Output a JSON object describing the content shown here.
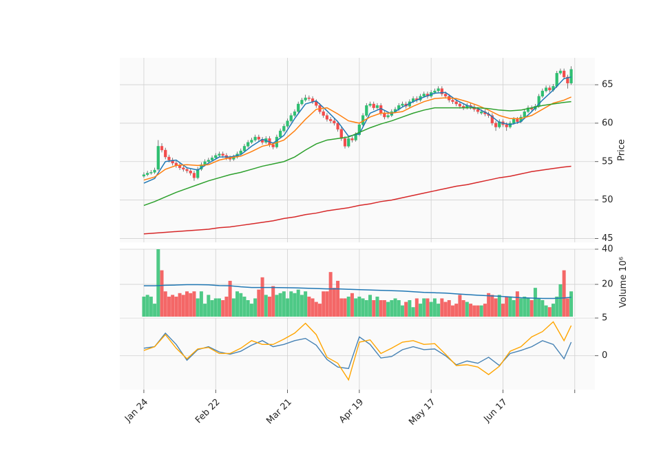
{
  "chart_data": {
    "type": "candlestick",
    "ylabel": "Price",
    "up_color": "#2fbf71",
    "down_color": "#f24c4c",
    "grid": true,
    "xlim": [
      -6.7,
      125.6
    ],
    "xticks": [
      {
        "value": 0,
        "label": "Jan 24"
      },
      {
        "value": 20,
        "label": "Feb 22"
      },
      {
        "value": 40,
        "label": "Mar 21"
      },
      {
        "value": 60,
        "label": "Apr 19"
      },
      {
        "value": 80,
        "label": "May 17"
      },
      {
        "value": 100,
        "label": "Jun 17"
      },
      120
    ],
    "ylim": [
      44.5,
      68.5
    ],
    "yticks": [
      45,
      50,
      55,
      60,
      65
    ],
    "x": [
      0,
      1,
      2,
      3,
      4,
      5,
      6,
      7,
      8,
      9,
      10,
      11,
      12,
      13,
      14,
      15,
      16,
      17,
      18,
      19,
      20,
      21,
      22,
      23,
      24,
      25,
      26,
      27,
      28,
      29,
      30,
      31,
      32,
      33,
      34,
      35,
      36,
      37,
      38,
      39,
      40,
      41,
      42,
      43,
      44,
      45,
      46,
      47,
      48,
      49,
      50,
      51,
      52,
      53,
      54,
      55,
      56,
      57,
      58,
      59,
      60,
      61,
      62,
      63,
      64,
      65,
      66,
      67,
      68,
      69,
      70,
      71,
      72,
      73,
      74,
      75,
      76,
      77,
      78,
      79,
      80,
      81,
      82,
      83,
      84,
      85,
      86,
      87,
      88,
      89,
      90,
      91,
      92,
      93,
      94,
      95,
      96,
      97,
      98,
      99,
      100,
      101,
      102,
      103,
      104,
      105,
      106,
      107,
      108,
      109,
      110,
      111,
      112,
      113,
      114,
      115,
      116,
      117,
      118,
      119
    ],
    "ohlc": [
      [
        53.1,
        53.6,
        52.9,
        53.3
      ],
      [
        53.3,
        53.8,
        53.1,
        53.5
      ],
      [
        53.5,
        53.9,
        53.3,
        53.6
      ],
      [
        53.6,
        54.2,
        53.4,
        53.9
      ],
      [
        54.0,
        57.8,
        53.8,
        57.0
      ],
      [
        57.0,
        57.4,
        56.2,
        56.5
      ],
      [
        56.5,
        56.8,
        55.3,
        55.6
      ],
      [
        55.6,
        55.9,
        54.9,
        55.2
      ],
      [
        55.2,
        55.5,
        54.5,
        54.8
      ],
      [
        54.8,
        55.1,
        54.2,
        54.5
      ],
      [
        54.5,
        54.8,
        53.9,
        54.2
      ],
      [
        54.2,
        54.5,
        53.7,
        54.0
      ],
      [
        54.0,
        54.3,
        53.5,
        53.8
      ],
      [
        53.8,
        54.1,
        53.2,
        53.5
      ],
      [
        53.5,
        53.8,
        52.5,
        52.9
      ],
      [
        52.9,
        54.3,
        52.7,
        54.0
      ],
      [
        54.0,
        54.9,
        53.8,
        54.6
      ],
      [
        54.6,
        55.3,
        54.4,
        55.0
      ],
      [
        55.0,
        55.5,
        54.8,
        55.2
      ],
      [
        55.2,
        55.8,
        55.0,
        55.5
      ],
      [
        55.5,
        56.1,
        55.3,
        55.8
      ],
      [
        55.8,
        56.3,
        55.6,
        56.0
      ],
      [
        56.0,
        56.3,
        55.5,
        55.8
      ],
      [
        55.8,
        56.1,
        55.2,
        55.5
      ],
      [
        55.5,
        55.8,
        55.0,
        55.3
      ],
      [
        55.3,
        55.9,
        55.1,
        55.6
      ],
      [
        55.6,
        56.3,
        55.4,
        56.0
      ],
      [
        56.0,
        56.7,
        55.8,
        56.4
      ],
      [
        56.4,
        57.3,
        56.2,
        57.0
      ],
      [
        57.0,
        57.8,
        56.8,
        57.5
      ],
      [
        57.5,
        58.1,
        57.3,
        57.8
      ],
      [
        57.8,
        58.5,
        57.6,
        58.2
      ],
      [
        58.2,
        58.5,
        57.6,
        57.9
      ],
      [
        57.9,
        58.2,
        57.2,
        57.5
      ],
      [
        57.5,
        58.3,
        57.3,
        58.0
      ],
      [
        58.0,
        58.3,
        56.9,
        57.2
      ],
      [
        57.2,
        57.5,
        56.6,
        56.9
      ],
      [
        56.9,
        58.5,
        56.7,
        58.2
      ],
      [
        58.2,
        59.3,
        58.0,
        59.0
      ],
      [
        59.0,
        59.9,
        58.8,
        59.6
      ],
      [
        59.6,
        60.6,
        59.4,
        60.3
      ],
      [
        60.3,
        61.3,
        60.1,
        61.0
      ],
      [
        61.0,
        61.8,
        60.8,
        61.5
      ],
      [
        61.5,
        62.8,
        61.3,
        62.5
      ],
      [
        62.5,
        63.3,
        62.3,
        63.0
      ],
      [
        63.0,
        63.7,
        62.8,
        63.3
      ],
      [
        63.3,
        63.6,
        62.9,
        63.2
      ],
      [
        63.2,
        63.5,
        62.5,
        62.8
      ],
      [
        62.8,
        63.1,
        62.0,
        62.3
      ],
      [
        62.3,
        62.6,
        61.2,
        61.5
      ],
      [
        61.5,
        61.8,
        60.7,
        61.0
      ],
      [
        61.0,
        61.3,
        60.2,
        60.5
      ],
      [
        60.5,
        60.8,
        60.0,
        60.3
      ],
      [
        60.3,
        60.6,
        59.7,
        60.0
      ],
      [
        60.0,
        60.3,
        58.9,
        59.2
      ],
      [
        59.2,
        59.5,
        57.7,
        58.0
      ],
      [
        58.0,
        58.3,
        56.7,
        57.0
      ],
      [
        57.0,
        58.3,
        56.8,
        58.0
      ],
      [
        58.0,
        58.3,
        57.5,
        57.8
      ],
      [
        57.8,
        58.8,
        57.6,
        58.5
      ],
      [
        58.5,
        60.1,
        58.3,
        59.8
      ],
      [
        59.8,
        61.3,
        59.6,
        61.0
      ],
      [
        61.0,
        62.6,
        60.8,
        62.3
      ],
      [
        62.3,
        62.8,
        62.1,
        62.5
      ],
      [
        62.5,
        62.8,
        61.7,
        62.0
      ],
      [
        62.0,
        62.6,
        61.8,
        62.3
      ],
      [
        62.3,
        62.6,
        61.0,
        61.3
      ],
      [
        61.3,
        61.6,
        60.5,
        60.8
      ],
      [
        60.8,
        61.3,
        60.6,
        61.0
      ],
      [
        61.0,
        61.8,
        60.8,
        61.5
      ],
      [
        61.5,
        62.1,
        61.3,
        61.8
      ],
      [
        61.8,
        62.6,
        61.6,
        62.3
      ],
      [
        62.3,
        62.8,
        62.1,
        62.5
      ],
      [
        62.5,
        62.8,
        61.9,
        62.2
      ],
      [
        62.2,
        63.1,
        62.0,
        62.8
      ],
      [
        62.8,
        63.5,
        62.6,
        63.2
      ],
      [
        63.2,
        63.5,
        62.7,
        63.0
      ],
      [
        63.0,
        63.8,
        62.8,
        63.5
      ],
      [
        63.5,
        64.1,
        63.3,
        63.8
      ],
      [
        63.8,
        64.1,
        63.2,
        63.5
      ],
      [
        63.5,
        64.3,
        63.3,
        64.0
      ],
      [
        64.0,
        64.5,
        63.8,
        64.2
      ],
      [
        64.2,
        64.8,
        64.0,
        64.5
      ],
      [
        64.5,
        64.8,
        63.5,
        63.8
      ],
      [
        63.8,
        64.1,
        63.2,
        63.5
      ],
      [
        63.5,
        63.8,
        62.7,
        63.0
      ],
      [
        63.0,
        63.3,
        62.5,
        62.8
      ],
      [
        62.8,
        63.1,
        62.2,
        62.5
      ],
      [
        62.5,
        62.8,
        61.9,
        62.2
      ],
      [
        62.2,
        62.5,
        61.7,
        62.0
      ],
      [
        62.0,
        62.6,
        61.8,
        62.3
      ],
      [
        62.3,
        62.6,
        61.8,
        62.1
      ],
      [
        62.1,
        62.4,
        61.5,
        61.8
      ],
      [
        61.8,
        62.1,
        61.2,
        61.5
      ],
      [
        61.3,
        61.8,
        61.1,
        61.5
      ],
      [
        61.5,
        61.8,
        60.9,
        61.2
      ],
      [
        61.2,
        61.5,
        60.7,
        61.0
      ],
      [
        61.0,
        61.3,
        59.7,
        60.0
      ],
      [
        60.0,
        60.3,
        59.0,
        59.5
      ],
      [
        59.5,
        60.5,
        59.3,
        60.2
      ],
      [
        60.2,
        60.5,
        59.5,
        59.8
      ],
      [
        59.8,
        60.1,
        59.0,
        59.5
      ],
      [
        59.5,
        60.3,
        59.3,
        60.0
      ],
      [
        60.0,
        60.8,
        59.8,
        60.5
      ],
      [
        60.5,
        60.8,
        59.9,
        60.2
      ],
      [
        60.2,
        61.1,
        60.0,
        60.8
      ],
      [
        60.8,
        61.8,
        60.6,
        61.5
      ],
      [
        61.5,
        62.3,
        61.3,
        62.0
      ],
      [
        62.0,
        62.3,
        61.5,
        61.8
      ],
      [
        61.8,
        62.5,
        61.6,
        62.2
      ],
      [
        62.2,
        63.8,
        62.0,
        63.5
      ],
      [
        63.5,
        64.5,
        63.3,
        64.2
      ],
      [
        64.2,
        64.9,
        64.0,
        64.6
      ],
      [
        64.6,
        64.9,
        64.0,
        64.3
      ],
      [
        64.3,
        65.1,
        64.1,
        64.8
      ],
      [
        64.8,
        66.8,
        64.6,
        66.5
      ],
      [
        66.5,
        67.1,
        66.3,
        66.8
      ],
      [
        66.8,
        67.1,
        65.7,
        66.0
      ],
      [
        66.0,
        66.3,
        64.5,
        65.2
      ],
      [
        65.2,
        67.4,
        65.0,
        67.0
      ]
    ],
    "overlays": {
      "x": [
        0,
        3,
        6,
        9,
        12,
        15,
        18,
        21,
        24,
        27,
        30,
        33,
        36,
        39,
        42,
        45,
        48,
        51,
        54,
        57,
        60,
        63,
        66,
        69,
        72,
        75,
        78,
        81,
        84,
        87,
        90,
        93,
        96,
        99,
        102,
        105,
        108,
        111,
        114,
        117,
        119
      ],
      "series": [
        {
          "color": "#1f77b4",
          "values": [
            52.2,
            52.8,
            55.0,
            55.2,
            54.2,
            53.9,
            54.8,
            55.6,
            55.6,
            55.9,
            57.0,
            57.9,
            57.4,
            58.4,
            60.6,
            62.5,
            62.9,
            61.6,
            60.2,
            58.3,
            58.6,
            61.3,
            61.9,
            61.2,
            62.1,
            62.8,
            63.4,
            63.9,
            64.0,
            63.0,
            62.3,
            61.9,
            61.2,
            60.1,
            59.8,
            60.2,
            61.5,
            63.0,
            64.3,
            65.8,
            66.0
          ]
        },
        {
          "color": "#ff7f0e",
          "values": [
            52.6,
            53.0,
            54.0,
            54.5,
            54.6,
            54.5,
            54.6,
            55.2,
            55.5,
            55.7,
            56.3,
            57.0,
            57.3,
            57.8,
            59.0,
            60.5,
            61.8,
            62.0,
            61.2,
            60.3,
            60.0,
            60.8,
            61.3,
            61.3,
            61.5,
            62.2,
            62.8,
            63.2,
            63.3,
            63.2,
            62.8,
            62.3,
            61.7,
            61.0,
            60.6,
            60.6,
            61.0,
            61.8,
            62.6,
            63.0,
            63.4
          ]
        },
        {
          "color": "#2ca02c",
          "values": [
            49.3,
            49.8,
            50.4,
            51.0,
            51.5,
            52.0,
            52.5,
            52.9,
            53.3,
            53.6,
            54.0,
            54.4,
            54.7,
            55.0,
            55.6,
            56.5,
            57.3,
            57.8,
            58.0,
            58.2,
            58.8,
            59.4,
            59.9,
            60.3,
            60.8,
            61.3,
            61.7,
            62.0,
            62.0,
            62.0,
            62.0,
            62.0,
            61.9,
            61.7,
            61.6,
            61.7,
            62.0,
            62.3,
            62.5,
            62.7,
            62.8
          ]
        },
        {
          "color": "#d62728",
          "values": [
            45.6,
            45.7,
            45.8,
            45.9,
            46.0,
            46.1,
            46.2,
            46.4,
            46.5,
            46.7,
            46.9,
            47.1,
            47.3,
            47.6,
            47.8,
            48.1,
            48.3,
            48.6,
            48.8,
            49.0,
            49.3,
            49.5,
            49.8,
            50.0,
            50.3,
            50.6,
            50.9,
            51.2,
            51.5,
            51.8,
            52.0,
            52.3,
            52.6,
            52.9,
            53.1,
            53.4,
            53.7,
            53.9,
            54.1,
            54.3,
            54.4
          ]
        }
      ]
    },
    "volume": {
      "label": "Volume",
      "multiplier": "10⁶",
      "ylim": [
        1.6,
        40
      ],
      "yticks": [
        20,
        40
      ],
      "values": [
        13,
        14,
        13,
        9,
        40,
        28,
        16,
        13,
        14,
        13,
        15,
        14,
        16,
        15,
        16,
        12,
        16,
        9,
        14,
        11,
        12,
        12,
        11,
        13,
        22,
        12,
        16,
        15,
        13,
        11,
        9,
        12,
        17,
        24,
        14,
        13,
        19,
        14,
        15,
        16,
        12,
        16,
        15,
        17,
        14,
        16,
        13,
        12,
        10,
        9,
        16,
        16,
        27,
        18,
        22,
        12,
        12,
        13,
        15,
        12,
        13,
        12,
        11,
        14,
        11,
        13,
        11,
        11,
        10,
        11,
        12,
        11,
        8,
        10,
        11,
        7,
        12,
        9,
        12,
        12,
        10,
        12,
        9,
        12,
        10,
        11,
        8,
        9,
        14,
        11,
        10,
        9,
        8,
        8,
        8,
        9,
        15,
        14,
        12,
        14,
        9,
        13,
        13,
        11,
        16,
        12,
        13,
        12,
        11,
        18,
        12,
        11,
        8,
        7,
        9,
        13,
        20,
        28,
        12,
        16
      ],
      "ma": {
        "color": "#1f77b4",
        "values": [
          19.2,
          19.2,
          19.5,
          19.6,
          19.8,
          19.8,
          19.7,
          19.3,
          19.2,
          18.6,
          18.2,
          18.2,
          18.2,
          18.1,
          18.0,
          17.8,
          17.6,
          17.4,
          17.4,
          17.2,
          17.0,
          16.8,
          16.6,
          16.4,
          16.2,
          15.8,
          15.4,
          15.2,
          15.0,
          14.6,
          14.2,
          13.8,
          13.5,
          13.2,
          12.8,
          12.4,
          12.2,
          12.0,
          12.0,
          12.3,
          12.6
        ]
      }
    },
    "macd": {
      "ylim": [
        -4.5,
        5
      ],
      "yticks": [
        0,
        5
      ],
      "series": [
        {
          "color": "#4682b4",
          "values": [
            1.0,
            1.2,
            3.0,
            1.5,
            -0.6,
            0.8,
            1.2,
            0.5,
            0.2,
            0.6,
            1.4,
            2.0,
            1.2,
            1.5,
            2.0,
            2.3,
            1.4,
            -0.5,
            -1.5,
            -1.7,
            2.5,
            1.5,
            -0.3,
            -0.1,
            0.8,
            1.2,
            0.8,
            0.9,
            0.0,
            -1.2,
            -0.7,
            -1.0,
            -0.2,
            -1.3,
            0.3,
            0.7,
            1.2,
            2.0,
            1.5,
            -0.4,
            1.8
          ]
        },
        {
          "color": "#ffa500",
          "values": [
            0.7,
            1.2,
            2.8,
            1.0,
            -0.4,
            0.9,
            1.1,
            0.3,
            0.3,
            1.0,
            2.0,
            1.5,
            1.5,
            2.2,
            3.0,
            4.3,
            2.8,
            -0.2,
            -1.0,
            -3.2,
            1.8,
            2.1,
            0.3,
            1.0,
            1.8,
            2.0,
            1.5,
            1.6,
            0.2,
            -1.3,
            -1.2,
            -1.5,
            -2.5,
            -1.4,
            0.6,
            1.2,
            2.5,
            3.2,
            4.5,
            2.0,
            4.0
          ]
        }
      ]
    }
  }
}
